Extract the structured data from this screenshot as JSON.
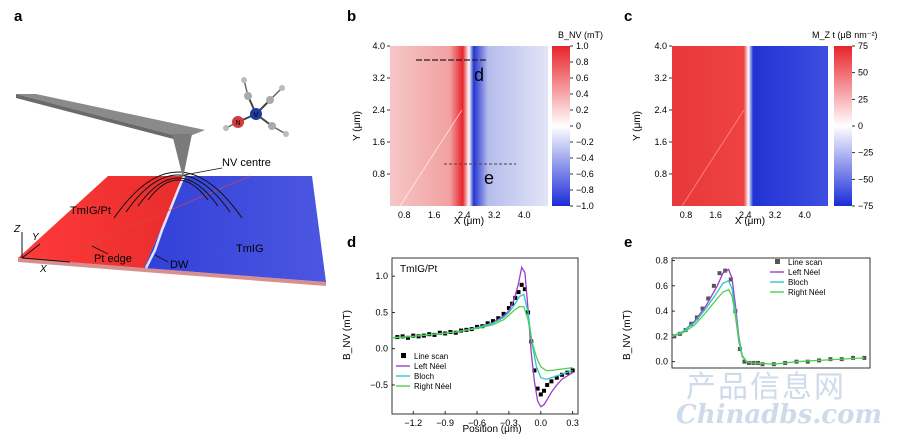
{
  "panels": {
    "a": "a",
    "b": "b",
    "c": "c",
    "d": "d",
    "e": "e"
  },
  "panel_a": {
    "tmig_pt": "TmIG/Pt",
    "tmig": "TmIG",
    "pt_edge": "Pt edge",
    "dw": "DW",
    "nv_centre": "NV centre",
    "axis_z": "Z",
    "axis_y": "Y",
    "axis_x": "X",
    "atom_n": "N",
    "atom_v": "V"
  },
  "panel_b": {
    "ylabel": "Y (μm)",
    "xlabel": "X (μm)",
    "yticks": [
      "4.0",
      "3.2",
      "2.4",
      "1.6",
      "0.8"
    ],
    "xticks": [
      "0.8",
      "1.6",
      "2.4",
      "3.2",
      "4.0"
    ],
    "line_d": "d",
    "line_e": "e",
    "cbar_title": "B_NV (mT)",
    "cbar_ticks": [
      "1.0",
      "0.8",
      "0.6",
      "0.4",
      "0.2",
      "0",
      "−0.2",
      "−0.4",
      "−0.6",
      "−0.8",
      "−1.0"
    ],
    "colors": {
      "red": "#e8242b",
      "blue": "#1a2bd8"
    }
  },
  "panel_c": {
    "ylabel": "Y (μm)",
    "xlabel": "X (μm)",
    "yticks": [
      "4.0",
      "3.2",
      "2.4",
      "1.6",
      "0.8"
    ],
    "xticks": [
      "0.8",
      "1.6",
      "2.4",
      "3.2",
      "4.0"
    ],
    "cbar_title": "M_Z t (μB nm⁻²)",
    "cbar_ticks": [
      "75",
      "50",
      "25",
      "0",
      "−25",
      "−50",
      "−75"
    ]
  },
  "chart_data": [
    {
      "type": "line",
      "panel": "d",
      "annotation": "TmIG/Pt",
      "xlabel": "Position (μm)",
      "ylabel": "B_NV (mT)",
      "xlim": [
        -1.4,
        0.35
      ],
      "ylim": [
        -0.9,
        1.25
      ],
      "xticks": [
        "−1.2",
        "−0.9",
        "−0.6",
        "−0.3",
        "0.0",
        "0.3"
      ],
      "yticks": [
        "1.0",
        "0.5",
        "0.0",
        "−0.5"
      ],
      "legend": "bottom-left",
      "series": [
        {
          "name": "Line scan",
          "color": "#000000",
          "marker": "square",
          "x": [
            -1.35,
            -1.3,
            -1.25,
            -1.2,
            -1.15,
            -1.1,
            -1.05,
            -1.0,
            -0.95,
            -0.9,
            -0.85,
            -0.8,
            -0.75,
            -0.7,
            -0.65,
            -0.6,
            -0.55,
            -0.5,
            -0.45,
            -0.4,
            -0.35,
            -0.3,
            -0.27,
            -0.24,
            -0.21,
            -0.18,
            -0.15,
            -0.12,
            -0.09,
            -0.06,
            -0.03,
            0.0,
            0.03,
            0.06,
            0.1,
            0.15,
            0.2,
            0.25,
            0.3
          ],
          "y": [
            0.16,
            0.17,
            0.15,
            0.18,
            0.17,
            0.18,
            0.2,
            0.19,
            0.22,
            0.21,
            0.23,
            0.22,
            0.25,
            0.26,
            0.27,
            0.3,
            0.31,
            0.35,
            0.38,
            0.42,
            0.48,
            0.56,
            0.62,
            0.7,
            0.78,
            0.88,
            0.82,
            0.5,
            0.1,
            -0.3,
            -0.55,
            -0.63,
            -0.58,
            -0.5,
            -0.45,
            -0.4,
            -0.36,
            -0.33,
            -0.3
          ]
        },
        {
          "name": "Left Néel",
          "color": "#9b3fc6",
          "x": [
            -1.4,
            -1.2,
            -1.0,
            -0.8,
            -0.6,
            -0.45,
            -0.35,
            -0.3,
            -0.25,
            -0.21,
            -0.18,
            -0.15,
            -0.12,
            -0.09,
            -0.06,
            -0.03,
            0.0,
            0.03,
            0.06,
            0.1,
            0.15,
            0.2,
            0.3
          ],
          "y": [
            0.15,
            0.17,
            0.2,
            0.23,
            0.29,
            0.36,
            0.45,
            0.52,
            0.68,
            0.9,
            1.12,
            1.05,
            0.55,
            -0.05,
            -0.45,
            -0.72,
            -0.8,
            -0.77,
            -0.7,
            -0.6,
            -0.5,
            -0.42,
            -0.33
          ]
        },
        {
          "name": "Bloch",
          "color": "#2ec7c7",
          "x": [
            -1.4,
            -1.2,
            -1.0,
            -0.8,
            -0.6,
            -0.45,
            -0.35,
            -0.3,
            -0.25,
            -0.2,
            -0.16,
            -0.12,
            -0.08,
            -0.04,
            0.0,
            0.05,
            0.1,
            0.2,
            0.3
          ],
          "y": [
            0.15,
            0.17,
            0.2,
            0.23,
            0.29,
            0.35,
            0.43,
            0.5,
            0.6,
            0.72,
            0.75,
            0.5,
            0.05,
            -0.25,
            -0.4,
            -0.42,
            -0.4,
            -0.35,
            -0.3
          ]
        },
        {
          "name": "Right Néel",
          "color": "#4fd04f",
          "x": [
            -1.4,
            -1.2,
            -1.0,
            -0.8,
            -0.6,
            -0.45,
            -0.35,
            -0.3,
            -0.25,
            -0.2,
            -0.16,
            -0.12,
            -0.08,
            -0.04,
            0.0,
            0.05,
            0.1,
            0.2,
            0.3
          ],
          "y": [
            0.15,
            0.17,
            0.2,
            0.23,
            0.28,
            0.33,
            0.4,
            0.46,
            0.53,
            0.58,
            0.58,
            0.4,
            0.08,
            -0.12,
            -0.25,
            -0.3,
            -0.3,
            -0.28,
            -0.26
          ]
        }
      ]
    },
    {
      "type": "line",
      "panel": "e",
      "ylabel": "B_NV (mT)",
      "xlim": [
        -1.4,
        0.35
      ],
      "ylim": [
        -0.05,
        0.82
      ],
      "yticks": [
        "0.8",
        "0.6",
        "0.4",
        "0.2",
        "0.0"
      ],
      "legend": "top-right",
      "series": [
        {
          "name": "Line scan",
          "color": "#555555",
          "marker": "square",
          "x": [
            -1.38,
            -1.33,
            -1.28,
            -1.23,
            -1.18,
            -1.13,
            -1.08,
            -1.03,
            -0.98,
            -0.93,
            -0.88,
            -0.84,
            -0.8,
            -0.76,
            -0.72,
            -0.68,
            -0.64,
            -0.6,
            -0.5,
            -0.4,
            -0.3,
            -0.2,
            -0.1,
            0.0,
            0.1,
            0.2,
            0.3
          ],
          "y": [
            0.2,
            0.22,
            0.25,
            0.3,
            0.35,
            0.42,
            0.5,
            0.6,
            0.7,
            0.72,
            0.65,
            0.4,
            0.1,
            0.0,
            -0.01,
            -0.01,
            -0.01,
            -0.02,
            -0.02,
            -0.01,
            0.0,
            0.0,
            0.01,
            0.02,
            0.02,
            0.03,
            0.03
          ]
        },
        {
          "name": "Left Néel",
          "color": "#9b3fc6",
          "x": [
            -1.4,
            -1.3,
            -1.2,
            -1.1,
            -1.0,
            -0.95,
            -0.9,
            -0.87,
            -0.84,
            -0.81,
            -0.78,
            -0.74,
            -0.7
          ],
          "y": [
            0.2,
            0.24,
            0.32,
            0.44,
            0.6,
            0.7,
            0.73,
            0.66,
            0.45,
            0.2,
            0.05,
            0.0,
            -0.01
          ]
        },
        {
          "name": "Bloch",
          "color": "#2ec7c7",
          "x": [
            -1.4,
            -1.3,
            -1.2,
            -1.1,
            -1.0,
            -0.95,
            -0.9,
            -0.87,
            -0.84,
            -0.81,
            -0.78,
            -0.74,
            -0.7
          ],
          "y": [
            0.2,
            0.24,
            0.31,
            0.42,
            0.55,
            0.62,
            0.64,
            0.58,
            0.4,
            0.18,
            0.05,
            0.0,
            -0.01
          ]
        },
        {
          "name": "Right Néel",
          "color": "#4fd04f",
          "x": [
            -1.4,
            -1.3,
            -1.2,
            -1.1,
            -1.0,
            -0.95,
            -0.9,
            -0.87,
            -0.84,
            -0.81,
            -0.78,
            -0.74,
            -0.7,
            -0.5,
            -0.3,
            -0.1,
            0.1,
            0.3
          ],
          "y": [
            0.2,
            0.23,
            0.29,
            0.39,
            0.5,
            0.55,
            0.57,
            0.52,
            0.36,
            0.16,
            0.04,
            0.0,
            -0.01,
            -0.02,
            0.0,
            0.01,
            0.02,
            0.03
          ]
        }
      ]
    }
  ],
  "watermark": {
    "cn": "产品信息网",
    "en": "Chinadbs.com"
  }
}
